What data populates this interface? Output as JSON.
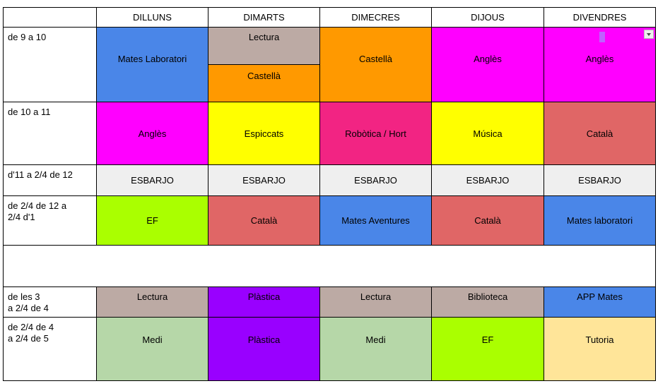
{
  "days": [
    "DILLUNS",
    "DIMARTS",
    "DIMECRES",
    "DIJOUS",
    "DIVENDRES"
  ],
  "colors": {
    "blue": "#4a86e8",
    "brown": "#bcaaa4",
    "orange": "#ff9900",
    "magenta": "#ff00ff",
    "yellow": "#ffff00",
    "pink": "#f22483",
    "red": "#e06666",
    "grey": "#efefef",
    "green": "#aaff00",
    "purple": "#9900ff",
    "sage": "#b6d7a8",
    "cream": "#ffe599"
  },
  "rows": [
    {
      "time": "de 9 a 10",
      "cells": [
        {
          "text": "Mates Laboratori",
          "color": "blue"
        },
        {
          "split": [
            {
              "text": "Lectura",
              "color": "brown"
            },
            {
              "text": "Castellà",
              "color": "orange"
            }
          ]
        },
        {
          "text": "Castellà",
          "color": "orange"
        },
        {
          "text": "Anglès",
          "color": "magenta"
        },
        {
          "text": "Anglès",
          "color": "magenta",
          "dropdown": true
        }
      ]
    },
    {
      "time": "de 10 a 11",
      "cells": [
        {
          "text": "Anglès",
          "color": "magenta"
        },
        {
          "text": "Espiccats",
          "color": "yellow"
        },
        {
          "text": "Robòtica / Hort",
          "color": "pink"
        },
        {
          "text": "Música",
          "color": "yellow"
        },
        {
          "text": "Català",
          "color": "red"
        }
      ]
    },
    {
      "time": "d'11 a 2/4 de 12",
      "cells": [
        {
          "text": "ESBARJO",
          "color": "grey"
        },
        {
          "text": "ESBARJO",
          "color": "grey"
        },
        {
          "text": "ESBARJO",
          "color": "grey"
        },
        {
          "text": "ESBARJO",
          "color": "grey"
        },
        {
          "text": "ESBARJO",
          "color": "grey"
        }
      ]
    },
    {
      "time": "de 2/4 de 12 a\n2/4 d'1",
      "cells": [
        {
          "text": "EF",
          "color": "green"
        },
        {
          "text": "Català",
          "color": "red"
        },
        {
          "text": "Mates Aventures",
          "color": "blue"
        },
        {
          "text": "Català",
          "color": "red"
        },
        {
          "text": "Mates laboratori",
          "color": "blue"
        }
      ]
    },
    {
      "empty": true
    },
    {
      "time": "de les 3\na 2/4 de 4",
      "top": true,
      "cells": [
        {
          "text": "Lectura",
          "color": "brown"
        },
        {
          "text": "Plàstica",
          "color": "purple"
        },
        {
          "text": "Lectura",
          "color": "brown"
        },
        {
          "text": "Biblioteca",
          "color": "brown"
        },
        {
          "text": "APP Mates",
          "color": "blue"
        }
      ]
    },
    {
      "time": "de 2/4 de 4\na 2/4 de 5",
      "cells": [
        {
          "text": "Medi",
          "color": "sage"
        },
        {
          "text": "Plàstica",
          "color": "purple"
        },
        {
          "text": "Medi",
          "color": "sage"
        },
        {
          "text": "EF",
          "color": "green"
        },
        {
          "text": "Tutoria",
          "color": "cream"
        }
      ]
    }
  ]
}
